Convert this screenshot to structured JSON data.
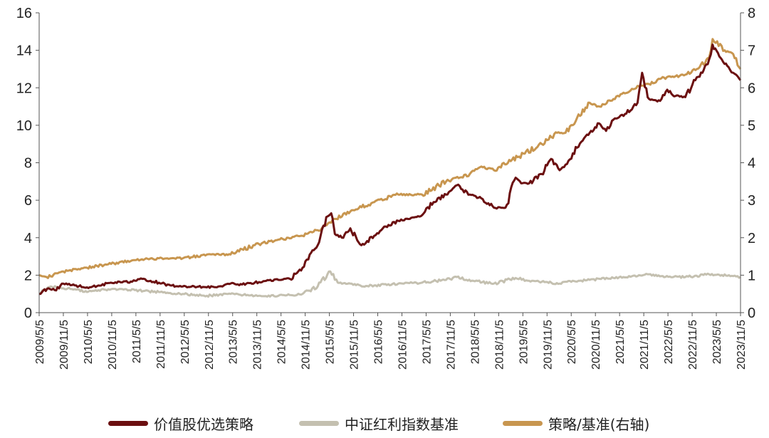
{
  "chart_data": {
    "type": "line",
    "title": "",
    "xlabel": "",
    "ylabel": "",
    "x_range": [
      "2009-05-05",
      "2023-12-31"
    ],
    "ylim": [
      0,
      16
    ],
    "y2lim": [
      0,
      8
    ],
    "yticks": [
      "0",
      "2",
      "4",
      "6",
      "8",
      "10",
      "12",
      "14",
      "16"
    ],
    "y2ticks": [
      "0",
      "1",
      "2",
      "3",
      "4",
      "5",
      "6",
      "7",
      "8"
    ],
    "xticks": [
      "2009/5/5",
      "2009/11/5",
      "2010/5/5",
      "2010/11/5",
      "2011/5/5",
      "2011/11/5",
      "2012/5/5",
      "2012/11/5",
      "2013/5/5",
      "2013/11/5",
      "2014/5/5",
      "2014/11/5",
      "2015/5/5",
      "2015/11/5",
      "2016/5/5",
      "2016/11/5",
      "2017/5/5",
      "2017/11/5",
      "2018/5/5",
      "2018/11/5",
      "2019/5/5",
      "2019/11/5",
      "2020/5/5",
      "2020/11/5",
      "2021/5/5",
      "2021/11/5",
      "2022/5/5",
      "2022/11/5",
      "2023/5/5",
      "2023/11/5"
    ],
    "grid": false,
    "legend_position": "bottom",
    "series": [
      {
        "name": "价值股优选策略",
        "axis": "left",
        "color": "#6b0f10",
        "x": [
          "2009-05-05",
          "2009-07-15",
          "2009-09-01",
          "2009-11-05",
          "2010-02-01",
          "2010-05-05",
          "2010-08-01",
          "2010-11-05",
          "2011-04-15",
          "2011-07-01",
          "2011-11-05",
          "2012-02-01",
          "2012-05-05",
          "2012-08-01",
          "2012-11-05",
          "2013-02-01",
          "2013-05-05",
          "2013-08-01",
          "2013-11-05",
          "2014-02-01",
          "2014-05-05",
          "2014-08-01",
          "2014-11-05",
          "2015-01-10",
          "2015-03-01",
          "2015-05-05",
          "2015-06-12",
          "2015-07-10",
          "2015-09-01",
          "2015-11-05",
          "2016-01-28",
          "2016-05-05",
          "2016-08-01",
          "2016-11-05",
          "2017-02-01",
          "2017-05-05",
          "2017-08-01",
          "2017-11-05",
          "2018-01-26",
          "2018-05-05",
          "2018-08-01",
          "2018-11-05",
          "2019-02-01",
          "2019-04-20",
          "2019-06-01",
          "2019-08-01",
          "2019-11-05",
          "2020-01-15",
          "2020-03-20",
          "2020-05-05",
          "2020-08-01",
          "2020-11-05",
          "2021-01-15",
          "2021-03-10",
          "2021-05-05",
          "2021-08-01",
          "2021-11-05",
          "2021-12-10",
          "2022-02-01",
          "2022-04-26",
          "2022-06-20",
          "2022-08-01",
          "2022-11-05",
          "2023-01-20",
          "2023-03-15",
          "2023-05-05",
          "2023-06-01",
          "2023-08-01",
          "2023-10-01",
          "2023-11-05",
          "2023-12-31"
        ],
        "y": [
          1.0,
          1.3,
          1.2,
          1.55,
          1.45,
          1.35,
          1.45,
          1.6,
          1.65,
          1.8,
          1.6,
          1.45,
          1.4,
          1.4,
          1.35,
          1.4,
          1.55,
          1.5,
          1.6,
          1.7,
          1.75,
          1.8,
          2.4,
          3.2,
          3.6,
          5.1,
          5.3,
          4.2,
          4.0,
          4.5,
          3.6,
          4.1,
          4.6,
          4.9,
          5.0,
          5.2,
          5.9,
          6.3,
          6.8,
          6.3,
          6.1,
          5.6,
          5.6,
          7.2,
          6.9,
          6.9,
          7.4,
          8.2,
          7.6,
          7.9,
          8.8,
          9.6,
          10.1,
          9.7,
          10.3,
          10.6,
          11.2,
          12.8,
          11.4,
          11.3,
          11.9,
          11.6,
          11.5,
          12.4,
          12.8,
          13.5,
          14.3,
          13.6,
          13.1,
          12.8,
          12.4
        ]
      },
      {
        "name": "中证红利指数基准",
        "axis": "left",
        "color": "#c4c0b0",
        "x": [
          "2009-05-05",
          "2009-08-01",
          "2009-11-05",
          "2010-02-01",
          "2010-05-05",
          "2010-08-01",
          "2010-11-05",
          "2011-05-05",
          "2011-11-05",
          "2012-05-05",
          "2012-11-05",
          "2013-05-05",
          "2013-11-05",
          "2014-05-05",
          "2014-11-05",
          "2015-03-01",
          "2015-06-05",
          "2015-08-01",
          "2015-11-05",
          "2016-02-01",
          "2016-05-05",
          "2016-11-05",
          "2017-05-05",
          "2017-11-05",
          "2018-01-26",
          "2018-06-01",
          "2018-11-05",
          "2019-04-20",
          "2019-08-01",
          "2019-11-05",
          "2020-03-20",
          "2020-05-05",
          "2020-11-05",
          "2021-05-05",
          "2021-11-05",
          "2022-02-01",
          "2022-05-05",
          "2022-11-05",
          "2023-05-05",
          "2023-11-05",
          "2023-12-31"
        ],
        "y": [
          1.0,
          1.4,
          1.3,
          1.25,
          1.1,
          1.2,
          1.25,
          1.2,
          1.1,
          1.0,
          0.9,
          1.0,
          0.9,
          0.9,
          1.0,
          1.4,
          2.2,
          1.6,
          1.55,
          1.4,
          1.45,
          1.55,
          1.6,
          1.75,
          1.9,
          1.7,
          1.55,
          1.85,
          1.7,
          1.65,
          1.55,
          1.65,
          1.75,
          1.85,
          1.95,
          2.05,
          1.95,
          1.9,
          2.05,
          1.95,
          1.9
        ]
      },
      {
        "name": "策略/基准(右轴)",
        "axis": "right",
        "color": "#c8964f",
        "x": [
          "2009-05-05",
          "2009-07-01",
          "2009-11-05",
          "2010-05-05",
          "2010-11-05",
          "2011-05-05",
          "2011-11-05",
          "2012-05-05",
          "2012-11-05",
          "2013-05-05",
          "2013-11-05",
          "2014-05-05",
          "2014-11-05",
          "2015-03-01",
          "2015-06-10",
          "2015-07-10",
          "2015-11-05",
          "2016-05-05",
          "2016-11-05",
          "2017-05-05",
          "2017-11-05",
          "2018-05-05",
          "2018-08-01",
          "2018-11-05",
          "2019-05-05",
          "2019-11-05",
          "2020-03-01",
          "2020-05-05",
          "2020-08-01",
          "2020-11-05",
          "2021-01-20",
          "2021-05-05",
          "2021-08-01",
          "2021-11-05",
          "2022-02-01",
          "2022-05-05",
          "2022-11-05",
          "2023-02-01",
          "2023-05-05",
          "2023-06-01",
          "2023-09-01",
          "2023-11-05",
          "2023-12-31"
        ],
        "y": [
          1.0,
          0.95,
          1.1,
          1.2,
          1.3,
          1.4,
          1.45,
          1.45,
          1.55,
          1.55,
          1.8,
          1.95,
          2.05,
          2.2,
          2.4,
          2.5,
          2.7,
          2.95,
          3.15,
          3.15,
          3.5,
          3.7,
          3.9,
          3.8,
          4.15,
          4.5,
          4.8,
          4.8,
          5.2,
          5.6,
          5.5,
          5.7,
          5.85,
          6.05,
          6.1,
          6.25,
          6.35,
          6.5,
          6.8,
          7.3,
          7.0,
          6.9,
          6.5
        ]
      }
    ]
  }
}
